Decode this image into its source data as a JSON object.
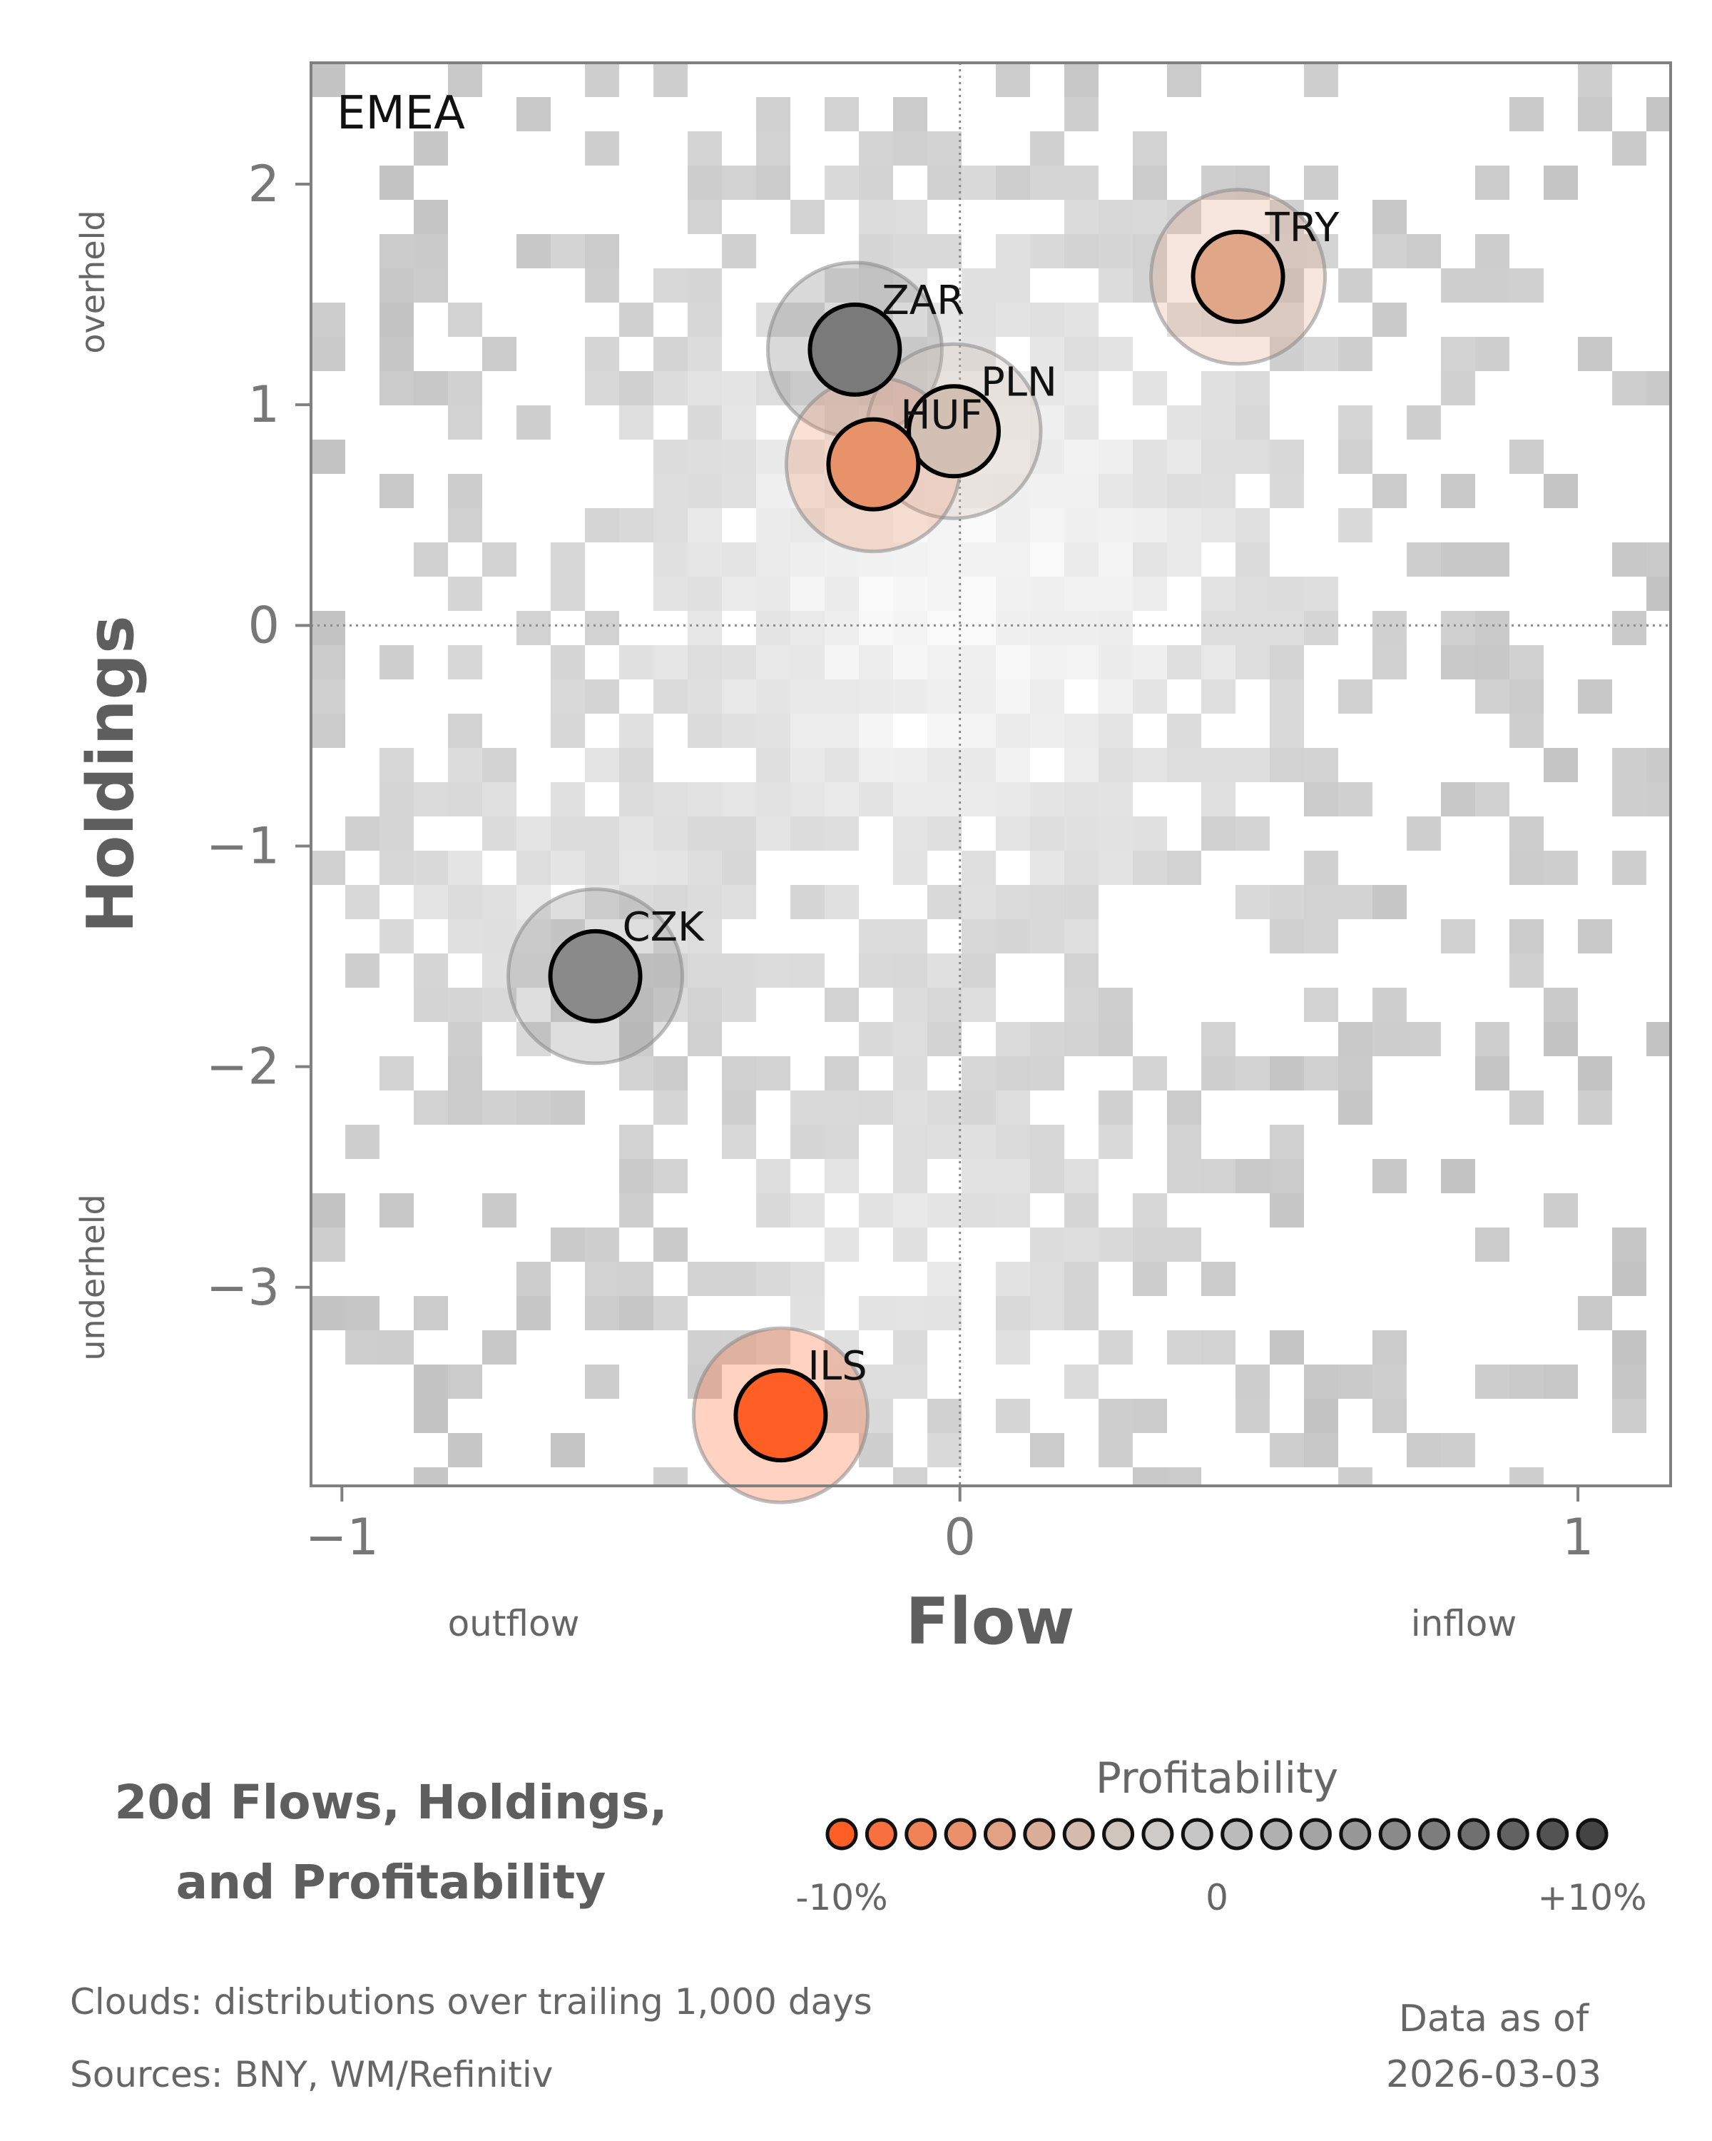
{
  "chart_data": {
    "type": "scatter",
    "region_label": "EMEA",
    "xlabel": "Flow",
    "ylabel": "Holdings",
    "x_low_note": "outflow",
    "x_high_note": "inflow",
    "y_high_note": "overheld",
    "y_low_note": "underheld",
    "xlim": [
      -1.05,
      1.15
    ],
    "ylim": [
      -3.9,
      2.55
    ],
    "x_ticks": [
      {
        "value": -1,
        "label": "−1"
      },
      {
        "value": 0,
        "label": "0"
      },
      {
        "value": 1,
        "label": "1"
      }
    ],
    "y_ticks": [
      {
        "value": 2,
        "label": "2"
      },
      {
        "value": 1,
        "label": "1"
      },
      {
        "value": 0,
        "label": "0"
      },
      {
        "value": -1,
        "label": "−1"
      },
      {
        "value": -2,
        "label": "−2"
      },
      {
        "value": -3,
        "label": "−3"
      }
    ],
    "reference_lines": {
      "x": 0,
      "y": 0,
      "style": "dotted"
    },
    "background": "2D histogram cloud of trailing 1,000-day distributions (grey)",
    "points": [
      {
        "label": "ZAR",
        "x": -0.17,
        "y": 1.25,
        "profit_pct": 8,
        "fill": "#7a7a7a"
      },
      {
        "label": "PLN",
        "x": -0.01,
        "y": 0.88,
        "profit_pct": -1,
        "fill": "#d3c0b4"
      },
      {
        "label": "HUF",
        "x": -0.14,
        "y": 0.73,
        "profit_pct": -7,
        "fill": "#e8926a"
      },
      {
        "label": "TRY",
        "x": 0.45,
        "y": 1.58,
        "profit_pct": -5,
        "fill": "#e0a688"
      },
      {
        "label": "CZK",
        "x": -0.59,
        "y": -1.59,
        "profit_pct": 6,
        "fill": "#8a8a8a"
      },
      {
        "label": "ILS",
        "x": -0.29,
        "y": -3.58,
        "profit_pct": -10,
        "fill": "#ff5e25"
      }
    ],
    "legend": {
      "title": "Profitability",
      "low_label": "-10%",
      "mid_label": "0",
      "high_label": "+10%",
      "colors": [
        "#ff5e25",
        "#f8703f",
        "#f18156",
        "#ea916c",
        "#e2a084",
        "#dbae9a",
        "#d5bbae",
        "#d0c5bd",
        "#cccbc7",
        "#c6c6c6",
        "#bbbbbb",
        "#b0b0b0",
        "#a4a4a4",
        "#989898",
        "#8a8a8a",
        "#7d7d7d",
        "#707070",
        "#626262",
        "#535353",
        "#444444"
      ]
    }
  },
  "footer": {
    "title_line1": "20d Flows, Holdings,",
    "title_line2": "and Profitability",
    "clouds_note": "Clouds:  distributions over trailing 1,000 days",
    "sources_note": "Sources:  BNY, WM/Refinitiv",
    "asof_line1": "Data as of",
    "asof_line2": "2026-03-03"
  }
}
